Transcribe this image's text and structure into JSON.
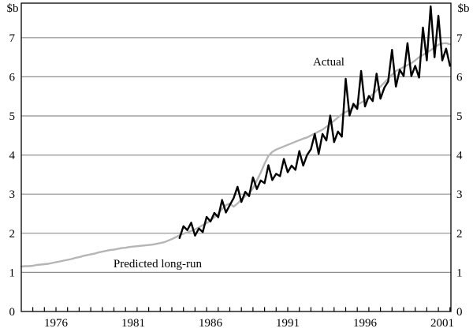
{
  "chart_data": {
    "type": "line",
    "title": "",
    "unit_label": "$b",
    "x_axis": {
      "range": [
        1973.7,
        2001.64
      ],
      "tick_label_years": [
        1976,
        1981,
        1986,
        1991,
        1996,
        2001
      ],
      "tick_labels": [
        "1976",
        "1981",
        "1986",
        "1991",
        "1996",
        "2001"
      ],
      "minor_tick_start": 1974.5,
      "minor_tick_step": 0.75
    },
    "y_axis": {
      "range": [
        0,
        7.89
      ],
      "ticks": [
        0,
        1,
        2,
        3,
        4,
        5,
        6,
        7
      ],
      "gridlines": [
        1,
        2,
        3,
        4,
        5,
        6,
        7
      ],
      "grid_color": "#8f8f8f",
      "axis_color": "#000000"
    },
    "series": [
      {
        "name": "Predicted long-run",
        "color": "#b5b5b5",
        "width": 2.4,
        "x_start": 1973.75,
        "x_step": 0.25,
        "values": [
          1.15,
          1.16,
          1.16,
          1.17,
          1.19,
          1.2,
          1.21,
          1.22,
          1.24,
          1.26,
          1.28,
          1.3,
          1.32,
          1.34,
          1.37,
          1.39,
          1.42,
          1.44,
          1.46,
          1.48,
          1.51,
          1.53,
          1.55,
          1.57,
          1.58,
          1.6,
          1.62,
          1.63,
          1.65,
          1.66,
          1.67,
          1.68,
          1.69,
          1.7,
          1.71,
          1.73,
          1.75,
          1.77,
          1.81,
          1.85,
          1.9,
          1.95,
          1.99,
          2.02,
          2.06,
          2.1,
          2.15,
          2.21,
          2.26,
          2.32,
          2.41,
          2.5,
          2.62,
          2.72,
          2.76,
          2.68,
          2.76,
          2.86,
          2.95,
          3.02,
          3.15,
          3.35,
          3.55,
          3.78,
          3.98,
          4.08,
          4.14,
          4.18,
          4.22,
          4.26,
          4.3,
          4.34,
          4.38,
          4.42,
          4.45,
          4.5,
          4.55,
          4.6,
          4.65,
          4.72,
          4.8,
          4.88,
          4.96,
          5.04,
          5.1,
          5.15,
          5.22,
          5.28,
          5.34,
          5.4,
          5.47,
          5.55,
          5.65,
          5.75,
          5.85,
          5.95,
          6.05,
          6.15,
          6.2,
          6.25,
          6.3,
          6.35,
          6.42,
          6.5,
          6.56,
          6.62,
          6.68,
          6.75,
          6.82,
          6.85,
          6.86,
          6.83
        ]
      },
      {
        "name": "Actual",
        "color": "#000000",
        "width": 2.4,
        "x_start": 1984.0,
        "x_step": 0.25,
        "values": [
          1.88,
          2.18,
          2.08,
          2.27,
          1.94,
          2.12,
          2.03,
          2.42,
          2.3,
          2.52,
          2.41,
          2.85,
          2.53,
          2.72,
          2.9,
          3.19,
          2.8,
          3.06,
          2.95,
          3.43,
          3.13,
          3.35,
          3.28,
          3.74,
          3.36,
          3.52,
          3.46,
          3.9,
          3.56,
          3.73,
          3.62,
          4.1,
          3.73,
          4.0,
          4.15,
          4.54,
          4.03,
          4.54,
          4.37,
          5.01,
          4.33,
          4.6,
          4.47,
          5.95,
          5.01,
          5.31,
          5.18,
          6.15,
          5.24,
          5.51,
          5.38,
          6.08,
          5.44,
          5.72,
          5.88,
          6.69,
          5.75,
          6.18,
          6.02,
          6.86,
          6.02,
          6.28,
          5.98,
          7.26,
          6.42,
          7.8,
          6.5,
          7.56,
          6.42,
          6.72,
          6.28
        ]
      }
    ],
    "annotations": [
      {
        "name": "actual-label",
        "text": "Actual",
        "x": 1993.65,
        "y": 6.39
      },
      {
        "name": "predicted-long-run-label",
        "text": "Predicted long-run",
        "x": 1982.58,
        "y": 1.23
      }
    ],
    "legend_position": "inline-annotations",
    "grid": "horizontal-only"
  }
}
